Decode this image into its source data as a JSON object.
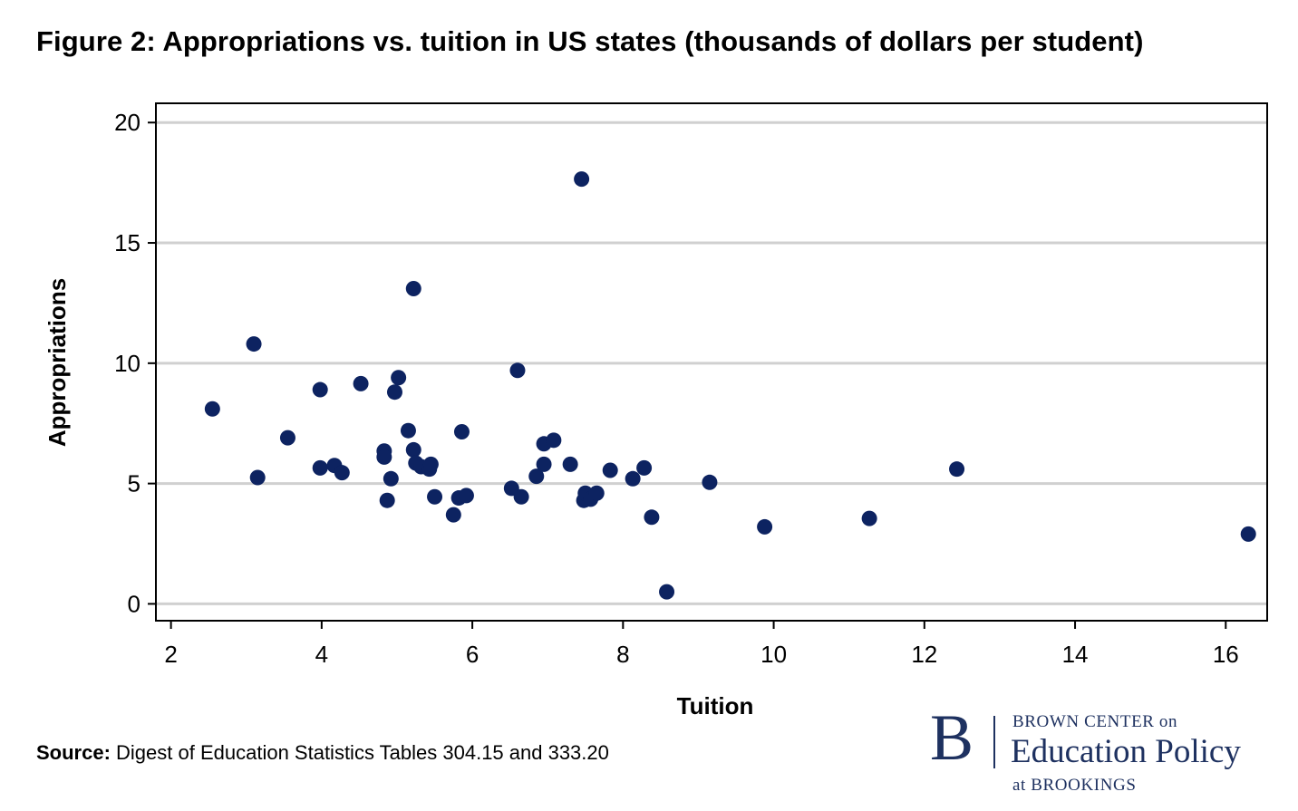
{
  "colors": {
    "point": "#0d2361",
    "grid": "#d0d0d0",
    "axis": "#000000",
    "brand": "#1e3160"
  },
  "chart_data": {
    "type": "scatter",
    "title": "Figure 2: Appropriations vs. tuition in US states (thousands of dollars per student)",
    "xlabel": "Tuition",
    "ylabel": "Appropriations",
    "xlim": [
      1.8,
      16.55
    ],
    "ylim": [
      -0.7,
      20.8
    ],
    "xticks": [
      2,
      4,
      6,
      8,
      10,
      12,
      14,
      16
    ],
    "yticks": [
      0,
      5,
      10,
      15,
      20
    ],
    "grid": "horizontal",
    "points": [
      [
        2.55,
        8.1
      ],
      [
        3.1,
        10.8
      ],
      [
        3.15,
        5.25
      ],
      [
        3.55,
        6.9
      ],
      [
        3.98,
        8.9
      ],
      [
        3.98,
        5.65
      ],
      [
        4.17,
        5.75
      ],
      [
        4.27,
        5.45
      ],
      [
        4.52,
        9.15
      ],
      [
        4.83,
        6.35
      ],
      [
        4.83,
        6.1
      ],
      [
        4.87,
        4.3
      ],
      [
        4.92,
        5.2
      ],
      [
        4.97,
        8.8
      ],
      [
        5.02,
        9.4
      ],
      [
        5.15,
        7.2
      ],
      [
        5.22,
        6.4
      ],
      [
        5.22,
        13.1
      ],
      [
        5.25,
        5.85
      ],
      [
        5.32,
        5.7
      ],
      [
        5.43,
        5.6
      ],
      [
        5.45,
        5.8
      ],
      [
        5.5,
        4.45
      ],
      [
        5.75,
        3.7
      ],
      [
        5.82,
        4.4
      ],
      [
        5.86,
        7.15
      ],
      [
        5.92,
        4.5
      ],
      [
        6.52,
        4.8
      ],
      [
        6.6,
        9.7
      ],
      [
        6.65,
        4.45
      ],
      [
        6.85,
        5.3
      ],
      [
        6.95,
        5.8
      ],
      [
        6.95,
        6.65
      ],
      [
        7.08,
        6.8
      ],
      [
        7.3,
        5.8
      ],
      [
        7.45,
        17.65
      ],
      [
        7.48,
        4.3
      ],
      [
        7.5,
        4.6
      ],
      [
        7.57,
        4.35
      ],
      [
        7.65,
        4.6
      ],
      [
        7.83,
        5.55
      ],
      [
        8.13,
        5.2
      ],
      [
        8.28,
        5.65
      ],
      [
        8.38,
        3.6
      ],
      [
        8.58,
        0.5
      ],
      [
        9.15,
        5.05
      ],
      [
        9.88,
        3.2
      ],
      [
        11.27,
        3.55
      ],
      [
        12.43,
        5.6
      ],
      [
        16.3,
        2.9
      ]
    ]
  },
  "source": {
    "label": "Source:",
    "text": " Digest of Education Statistics Tables 304.15 and 333.20"
  },
  "logo": {
    "letter": "B",
    "line1": "BROWN CENTER on",
    "line2": "Education Policy",
    "line3": "at BROOKINGS"
  }
}
